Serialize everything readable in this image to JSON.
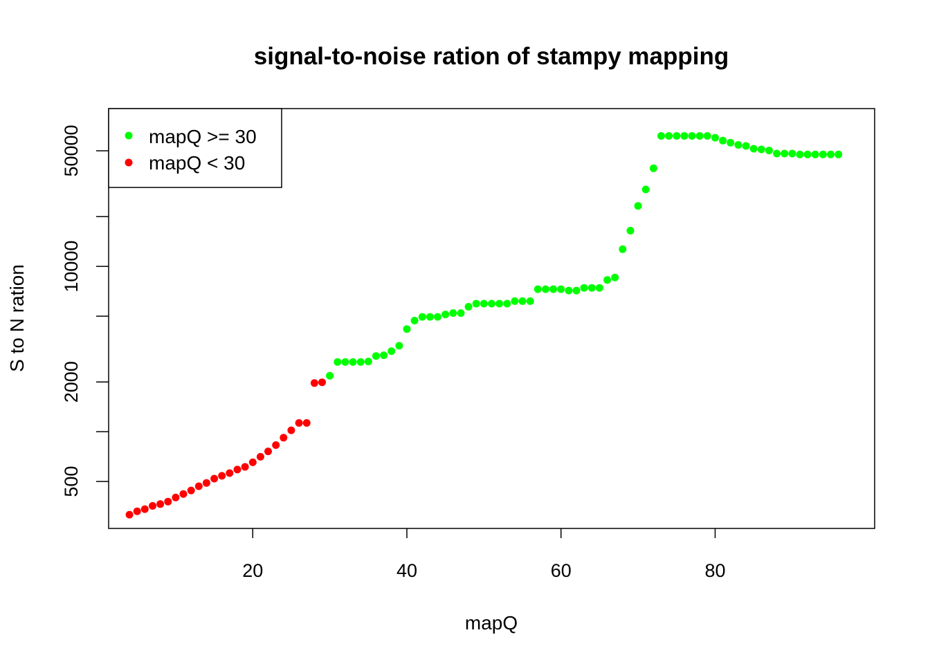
{
  "chart_data": {
    "type": "scatter",
    "title": "signal-to-noise ration of stampy mapping",
    "xlabel": "mapQ",
    "ylabel": "S to N ration",
    "y_scale": "log",
    "xlim": [
      1.3,
      100.7
    ],
    "ylim": [
      260,
      90000
    ],
    "x_ticks": [
      20,
      40,
      60,
      80
    ],
    "x_tick_labels": [
      "20",
      "40",
      "60",
      "80"
    ],
    "y_ticks": [
      500,
      1000,
      2000,
      5000,
      10000,
      20000,
      50000
    ],
    "y_tick_labels": [
      "500",
      "",
      "2000",
      "",
      "10000",
      "",
      "50000"
    ],
    "legend_position": "top-left",
    "colors": {
      "high": "#00ff00",
      "low": "#ff0000"
    },
    "series": [
      {
        "name": "mapQ >= 30",
        "color": "#00ff00",
        "x": [
          30,
          31,
          32,
          33,
          34,
          35,
          36,
          37,
          38,
          39,
          40,
          41,
          42,
          43,
          44,
          45,
          46,
          47,
          48,
          49,
          50,
          51,
          52,
          53,
          54,
          55,
          56,
          57,
          58,
          59,
          60,
          61,
          62,
          63,
          64,
          65,
          66,
          67,
          68,
          69,
          70,
          71,
          72,
          73,
          74,
          75,
          76,
          77,
          78,
          79,
          80,
          81,
          82,
          83,
          84,
          85,
          86,
          87,
          88,
          89,
          90,
          91,
          92,
          93,
          94,
          95,
          96
        ],
        "y": [
          2180,
          2640,
          2640,
          2640,
          2640,
          2660,
          2870,
          2900,
          3070,
          3310,
          4180,
          4700,
          4950,
          4950,
          4950,
          5120,
          5220,
          5220,
          5700,
          5950,
          5950,
          5950,
          5950,
          5950,
          6160,
          6160,
          6160,
          7280,
          7280,
          7280,
          7280,
          7140,
          7140,
          7410,
          7410,
          7410,
          8270,
          8560,
          12700,
          16440,
          23200,
          29200,
          39200,
          61500,
          61500,
          61500,
          61500,
          61500,
          61500,
          61500,
          60000,
          57600,
          56000,
          54300,
          53500,
          51500,
          51000,
          50200,
          48100,
          48100,
          48100,
          47500,
          47500,
          47500,
          47500,
          47500,
          47500
        ]
      },
      {
        "name": "mapQ < 30",
        "color": "#ff0000",
        "x": [
          4,
          5,
          6,
          7,
          8,
          9,
          10,
          11,
          12,
          13,
          14,
          15,
          16,
          17,
          18,
          19,
          20,
          21,
          22,
          23,
          24,
          25,
          26,
          27,
          28,
          29
        ],
        "y": [
          315,
          330,
          340,
          356,
          365,
          378,
          400,
          420,
          441,
          468,
          490,
          520,
          541,
          562,
          590,
          613,
          653,
          705,
          760,
          830,
          920,
          1020,
          1130,
          1130,
          1970,
          1990
        ]
      }
    ]
  }
}
